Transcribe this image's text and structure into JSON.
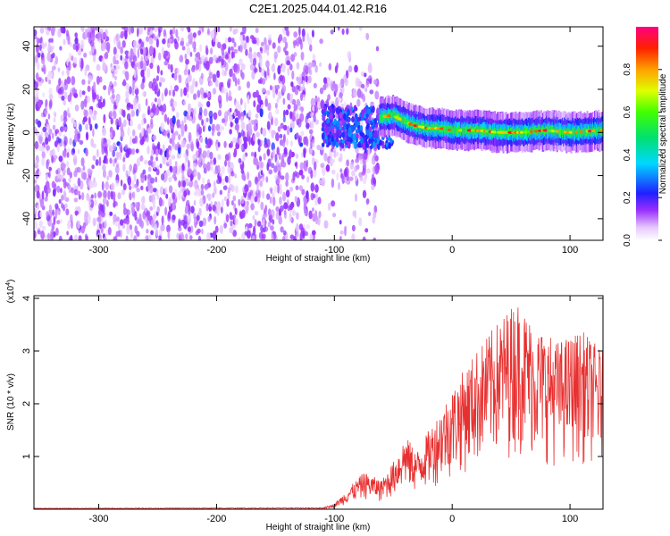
{
  "title": "C2E1.2025.044.01.42.R16",
  "chart_data": [
    {
      "type": "heatmap",
      "xlabel": "Height of straight line (km)",
      "ylabel": "Frequency (Hz)",
      "xlim": [
        -355,
        128
      ],
      "ylim": [
        -50,
        49
      ],
      "xticks": [
        -300,
        -200,
        -100,
        0,
        100
      ],
      "yticks": [
        -40,
        -20,
        0,
        20,
        40
      ],
      "colorbar": {
        "label": "Normalized spectral amplitude",
        "range": [
          0,
          1
        ],
        "ticks": [
          0.0,
          0.2,
          0.4,
          0.6,
          0.8
        ]
      },
      "features": {
        "noise_region_x": [
          -355,
          -62
        ],
        "tone_region_x": [
          -62,
          128
        ],
        "tone_center_freq": [
          [
            -62,
            7
          ],
          [
            -50,
            8
          ],
          [
            -40,
            5
          ],
          [
            -30,
            3
          ],
          [
            -20,
            2
          ],
          [
            -10,
            2
          ],
          [
            0,
            1
          ],
          [
            20,
            1
          ],
          [
            40,
            0
          ],
          [
            60,
            0
          ],
          [
            80,
            1
          ],
          [
            100,
            0
          ],
          [
            128,
            1
          ]
        ],
        "tone_amplitude": 0.6
      }
    },
    {
      "type": "line",
      "xlabel": "Height of straight line (km)",
      "ylabel": "SNR (10 * v/v)",
      "y_multiplier": "(x10^4)",
      "xlim": [
        -355,
        128
      ],
      "ylim": [
        0,
        4.05
      ],
      "xticks": [
        -300,
        -200,
        -100,
        0,
        100
      ],
      "yticks": [
        1,
        2,
        3,
        4
      ],
      "color": "#e83030",
      "envelope": [
        [
          -355,
          0.02
        ],
        [
          -110,
          0.03
        ],
        [
          -100,
          0.1
        ],
        [
          -90,
          0.35
        ],
        [
          -75,
          0.7
        ],
        [
          -60,
          0.55
        ],
        [
          -50,
          0.9
        ],
        [
          -40,
          1.4
        ],
        [
          -30,
          1.1
        ],
        [
          -20,
          1.5
        ],
        [
          -10,
          1.9
        ],
        [
          0,
          2.3
        ],
        [
          20,
          3.0
        ],
        [
          40,
          3.6
        ],
        [
          55,
          4.0
        ],
        [
          70,
          3.5
        ],
        [
          90,
          3.2
        ],
        [
          110,
          3.4
        ],
        [
          128,
          3.0
        ]
      ]
    }
  ]
}
